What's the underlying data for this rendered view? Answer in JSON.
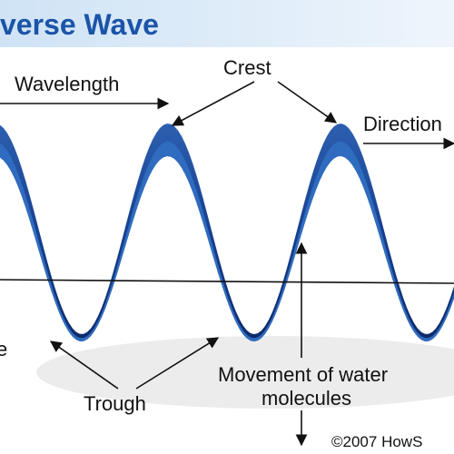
{
  "header": {
    "title": "verse Wave"
  },
  "labels": {
    "wavelength": "Wavelength",
    "crest": "Crest",
    "direction": "Direction",
    "left_cut": "e",
    "trough": "Trough",
    "movement": [
      "Movement of water",
      "molecules"
    ],
    "copyright": "©2007 HowS"
  }
}
